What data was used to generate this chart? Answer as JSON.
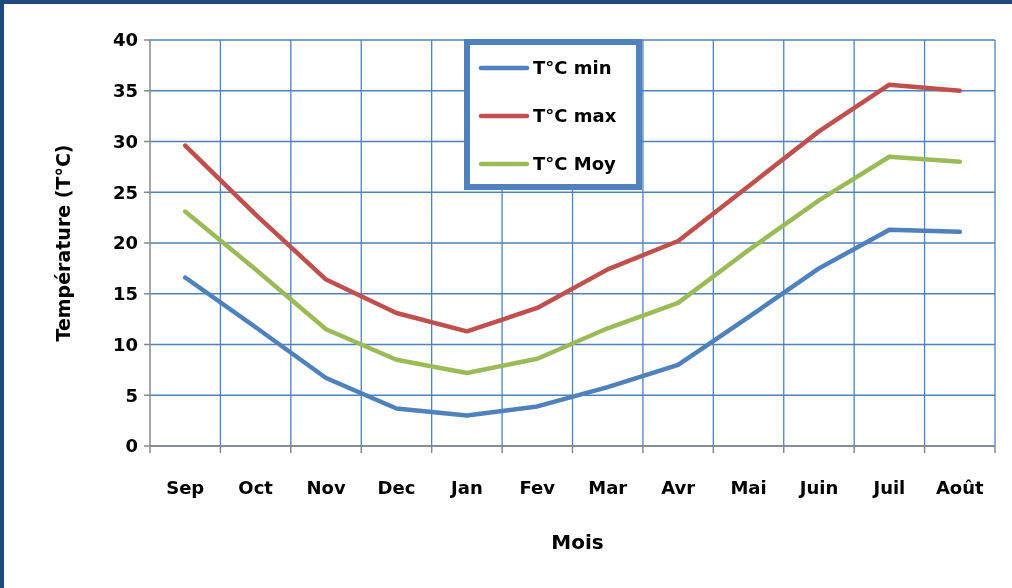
{
  "chart_data": {
    "type": "line",
    "xlabel": "Mois",
    "ylabel": "Température (T°C)",
    "categories": [
      "Sep",
      "Oct",
      "Nov",
      "Dec",
      "Jan",
      "Fev",
      "Mar",
      "Avr",
      "Mai",
      "Juin",
      "Juil",
      "Août"
    ],
    "series": [
      {
        "name": "T°C min",
        "color": "#4f81bd",
        "values": [
          16.6,
          11.7,
          6.7,
          3.7,
          3.0,
          3.9,
          5.8,
          8.0,
          12.7,
          17.5,
          21.3,
          21.1
        ]
      },
      {
        "name": "T°C max",
        "color": "#c0504d",
        "values": [
          29.6,
          22.8,
          16.4,
          13.1,
          11.3,
          13.6,
          17.4,
          20.2,
          25.6,
          31.0,
          35.6,
          35.0
        ]
      },
      {
        "name": "T°C Moy",
        "color": "#9bbb59",
        "values": [
          23.1,
          17.4,
          11.5,
          8.5,
          7.2,
          8.6,
          11.6,
          14.1,
          19.3,
          24.2,
          28.5,
          28.0
        ]
      }
    ],
    "ylim": [
      0,
      40
    ],
    "yticks": [
      0,
      5,
      10,
      15,
      20,
      25,
      30,
      35,
      40
    ],
    "grid": true,
    "legend": "top",
    "marker": "none",
    "line_style": "solid"
  }
}
